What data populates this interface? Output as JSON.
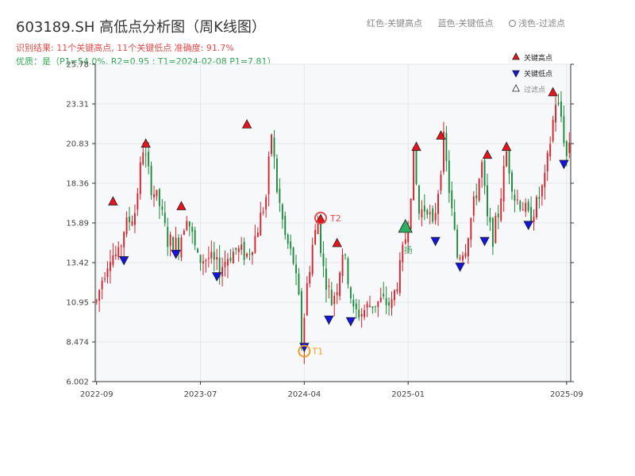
{
  "header": {
    "title": "603189.SH 高低点分析图（周K线图）",
    "info_line1": "识别结果: 11个关键高点, 11个关键低点   准确度: 91.7%",
    "info_line2": "优质：是（P1=54.0%, R2=0.95 ; T1=2024-02-08 P1=7.81）"
  },
  "top_legend": {
    "red": "红色-关键高点",
    "blue": "蓝色-关键低点",
    "hollow": "浅色-过滤点"
  },
  "legend": {
    "high": "关键高点",
    "low": "关键低点",
    "filtered": "过滤点"
  },
  "colors": {
    "up": "#d6202a",
    "down": "#1a8a3a",
    "high_marker": "#e8141c",
    "low_marker": "#1414e0",
    "t1_ring": "#f0a020",
    "t2_ring": "#e64a4a",
    "filtered_marker": "#2bb060",
    "plot_bg": "#f7f8fa"
  },
  "chart_data": {
    "type": "candlestick",
    "interval": "weekly",
    "y_ticks": [
      "6.002",
      "8.474",
      "10.95",
      "13.42",
      "15.89",
      "18.36",
      "20.83",
      "23.31",
      "25.78"
    ],
    "x_ticks": [
      "2022-09",
      "2023-07",
      "2024-04",
      "2025-01",
      "2025-09"
    ],
    "ylim": [
      6.002,
      25.78
    ],
    "grid": true,
    "legend_position": "top-right",
    "anchors": [
      [
        0,
        11.0
      ],
      [
        2,
        12.4
      ],
      [
        5,
        14.0
      ],
      [
        8,
        13.8
      ],
      [
        10,
        15.5
      ],
      [
        14,
        16.6
      ],
      [
        17,
        20.6
      ],
      [
        20,
        18.2
      ],
      [
        23,
        17.0
      ],
      [
        26,
        14.8
      ],
      [
        30,
        14.5
      ],
      [
        33,
        16.5
      ],
      [
        37,
        13.6
      ],
      [
        41,
        13.7
      ],
      [
        45,
        13.0
      ],
      [
        48,
        13.8
      ],
      [
        51,
        14.2
      ],
      [
        55,
        13.9
      ],
      [
        58,
        15.0
      ],
      [
        62,
        17.5
      ],
      [
        64,
        21.5
      ],
      [
        66,
        18.0
      ],
      [
        69,
        15.0
      ],
      [
        72,
        13.5
      ],
      [
        74,
        11.0
      ],
      [
        75,
        8.3
      ],
      [
        77,
        12.0
      ],
      [
        79,
        14.5
      ],
      [
        81,
        16.0
      ],
      [
        83,
        13.0
      ],
      [
        86,
        11.0
      ],
      [
        88,
        12.0
      ],
      [
        90,
        14.2
      ],
      [
        92,
        12.5
      ],
      [
        94,
        10.3
      ],
      [
        97,
        10.3
      ],
      [
        100,
        10.8
      ],
      [
        104,
        11.0
      ],
      [
        108,
        10.8
      ],
      [
        111,
        13.0
      ],
      [
        114,
        16.0
      ],
      [
        116,
        20.0
      ],
      [
        118,
        16.5
      ],
      [
        121,
        17.0
      ],
      [
        123,
        15.5
      ],
      [
        125,
        18.0
      ],
      [
        127,
        21.0
      ],
      [
        130,
        16.5
      ],
      [
        132,
        13.8
      ],
      [
        135,
        14.5
      ],
      [
        138,
        17.0
      ],
      [
        141,
        19.5
      ],
      [
        143,
        16.0
      ],
      [
        145,
        15.0
      ],
      [
        147,
        16.5
      ],
      [
        150,
        20.3
      ],
      [
        153,
        17.5
      ],
      [
        156,
        17.0
      ],
      [
        158,
        16.2
      ],
      [
        161,
        17.0
      ],
      [
        164,
        18.5
      ],
      [
        166,
        21.0
      ],
      [
        168,
        23.5
      ],
      [
        170,
        22.5
      ],
      [
        172,
        20.0
      ],
      [
        173,
        21.0
      ]
    ],
    "key_highs": [
      {
        "x": 6,
        "y": 17.2
      },
      {
        "x": 18,
        "y": 20.8
      },
      {
        "x": 31,
        "y": 16.9
      },
      {
        "x": 55,
        "y": 22.0
      },
      {
        "x": 82,
        "y": 16.1
      },
      {
        "x": 88,
        "y": 14.6
      },
      {
        "x": 117,
        "y": 20.6
      },
      {
        "x": 126,
        "y": 21.3
      },
      {
        "x": 143,
        "y": 20.1
      },
      {
        "x": 150,
        "y": 20.6
      },
      {
        "x": 167,
        "y": 24.0
      }
    ],
    "key_lows": [
      {
        "x": 10,
        "y": 13.6
      },
      {
        "x": 29,
        "y": 14.0
      },
      {
        "x": 44,
        "y": 12.6
      },
      {
        "x": 76,
        "y": 8.2
      },
      {
        "x": 85,
        "y": 9.9
      },
      {
        "x": 93,
        "y": 9.8
      },
      {
        "x": 124,
        "y": 14.8
      },
      {
        "x": 133,
        "y": 13.2
      },
      {
        "x": 142,
        "y": 14.8
      },
      {
        "x": 158,
        "y": 15.8
      },
      {
        "x": 171,
        "y": 19.6
      }
    ],
    "filtered_points": [
      {
        "x": 113,
        "y": 15.6
      }
    ],
    "annotations": [
      {
        "label": "T1",
        "x": 76,
        "y": 7.9
      },
      {
        "label": "T2",
        "x": 82,
        "y": 16.2
      },
      {
        "label": "扬",
        "x": 113,
        "y": 14.2
      }
    ]
  }
}
